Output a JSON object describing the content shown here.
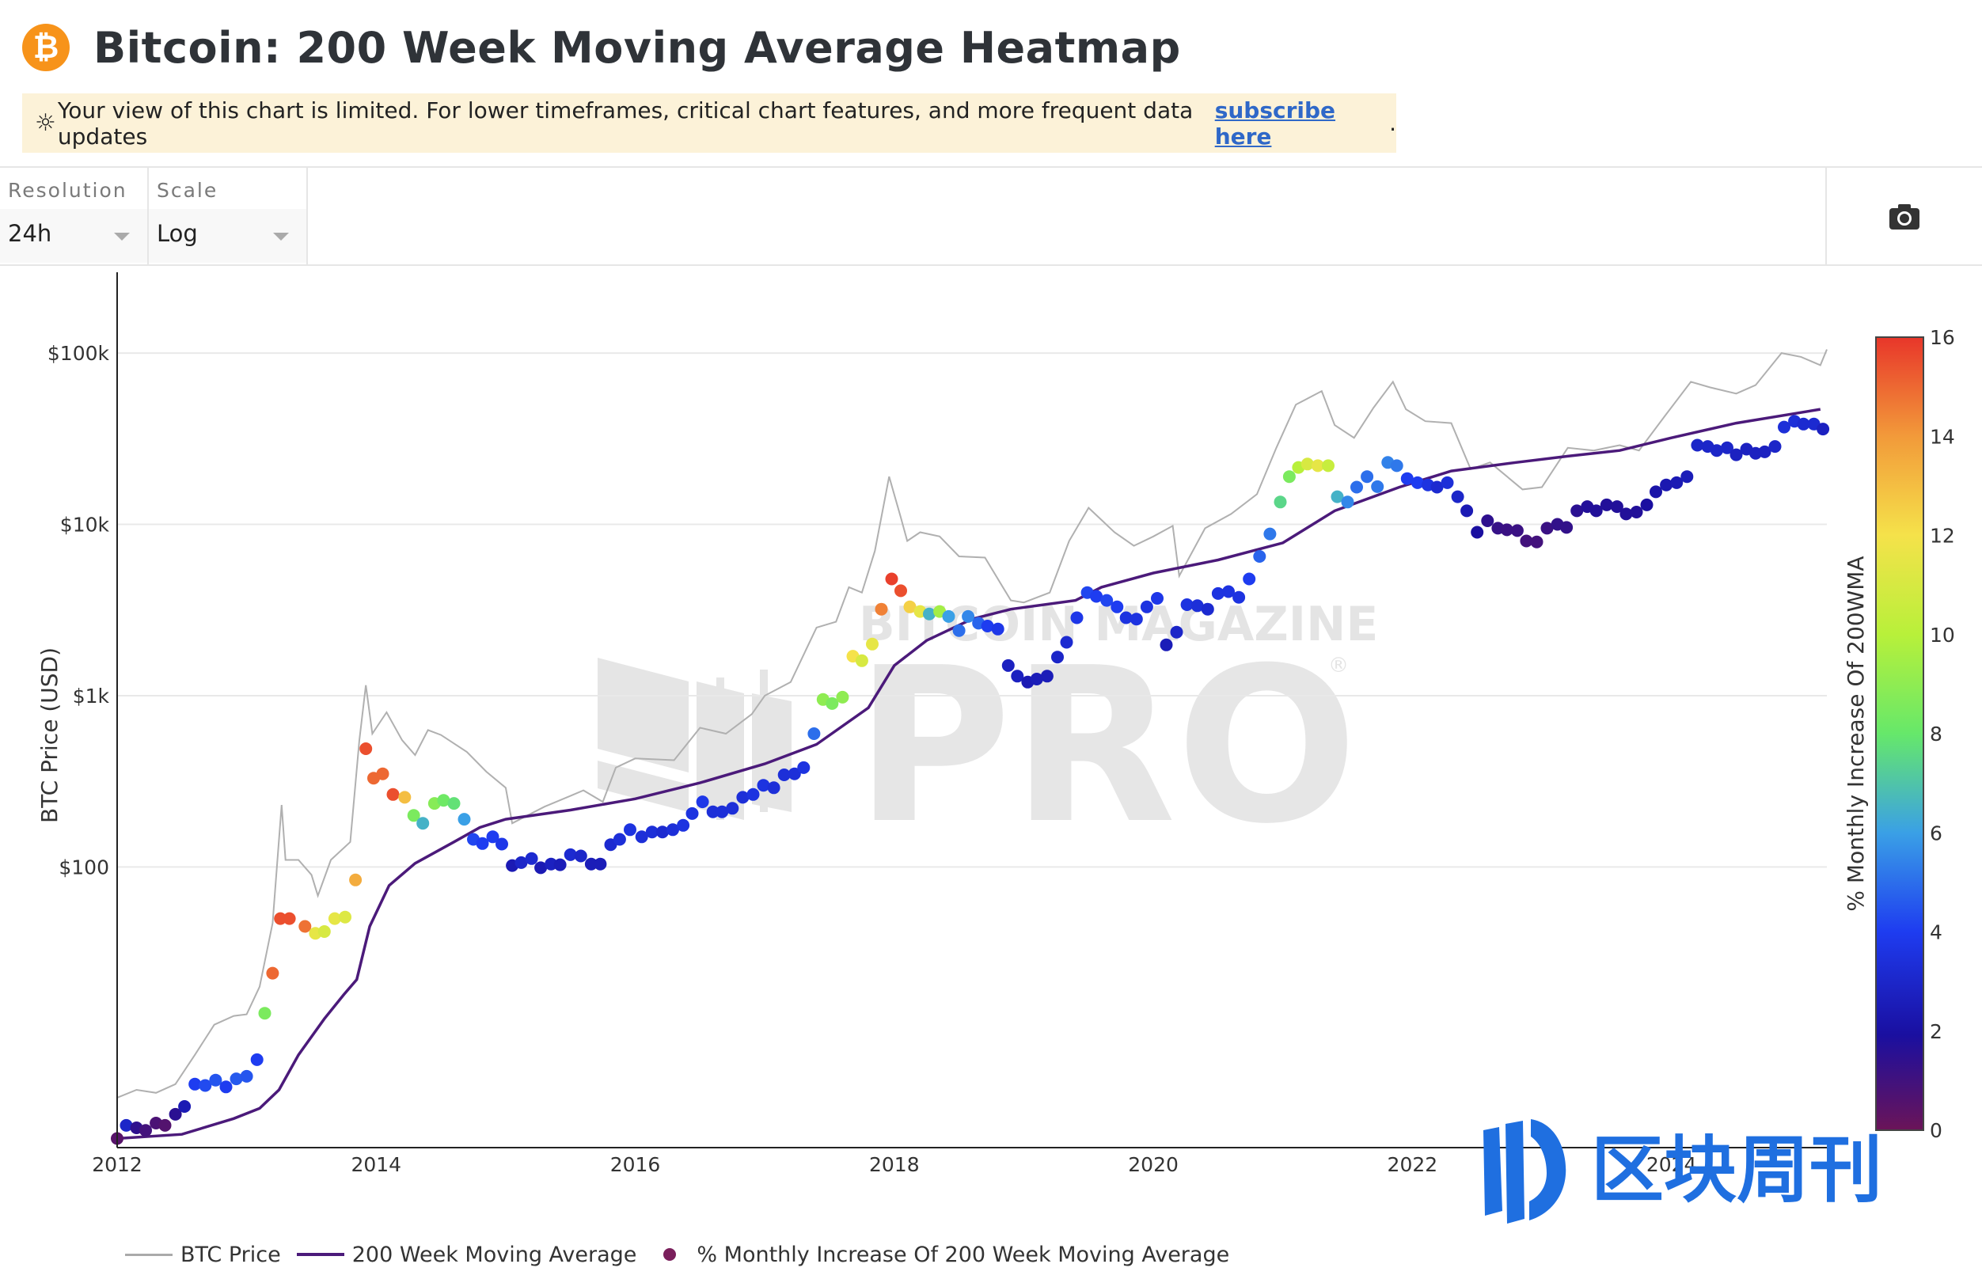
{
  "header": {
    "title": "Bitcoin: 200 Week Moving Average Heatmap",
    "logo_glyph": "₿"
  },
  "notice": {
    "icon": "sun-icon",
    "icon_glyph": "☼",
    "text": "Your view of this chart is limited. For lower timeframes, critical chart features, and more frequent data updates",
    "link": "subscribe here",
    "tail": "."
  },
  "controls": {
    "resolution": {
      "label": "Resolution",
      "value": "24h"
    },
    "scale": {
      "label": "Scale",
      "value": "Log"
    }
  },
  "legend": [
    {
      "name": "BTC Price",
      "color": "#aaaaaa"
    },
    {
      "name": "200 Week Moving Average",
      "color": "#4b1a7a"
    },
    {
      "name": "% Monthly Increase Of 200 Week Moving Average",
      "color": "#7a1f5c"
    }
  ],
  "watermark": {
    "top": "BITCOIN MAGAZINE",
    "main": "PRO",
    "mark": "®"
  },
  "corner_logo": {
    "text": "区块周刊"
  },
  "chart_data": {
    "type": "scatter",
    "ylabel": "BTC Price (USD)",
    "colorbar_label": "% Monthly Increase Of 200WMA",
    "colorbar_range": [
      0,
      16
    ],
    "colorbar_ticks": [
      "0",
      "2",
      "4",
      "6",
      "8",
      "10",
      "12",
      "14",
      "16"
    ],
    "x_ticks": [
      "2012",
      "2014",
      "2016",
      "2018",
      "2020",
      "2022",
      "2024"
    ],
    "x_range": [
      2012.0,
      2025.2
    ],
    "y_scale": "log",
    "y_range": [
      2.3,
      150000
    ],
    "y_ticks": [
      {
        "label": "$100",
        "value": 100
      },
      {
        "label": "$1k",
        "value": 1000
      },
      {
        "label": "$10k",
        "value": 10000
      },
      {
        "label": "$100k",
        "value": 100000
      }
    ],
    "grid": true,
    "legend_position": "bottom",
    "ma200": [
      [
        2012.0,
        2.6
      ],
      [
        2012.5,
        2.75
      ],
      [
        2012.9,
        3.4
      ],
      [
        2013.1,
        3.9
      ],
      [
        2013.25,
        5.0
      ],
      [
        2013.4,
        8.0
      ],
      [
        2013.6,
        13.0
      ],
      [
        2013.75,
        18.0
      ],
      [
        2013.85,
        22.0
      ],
      [
        2013.95,
        45.0
      ],
      [
        2014.1,
        78.0
      ],
      [
        2014.3,
        105.0
      ],
      [
        2014.6,
        140.0
      ],
      [
        2014.8,
        170.0
      ],
      [
        2015.0,
        190.0
      ],
      [
        2015.5,
        215.0
      ],
      [
        2016.0,
        250.0
      ],
      [
        2016.5,
        310.0
      ],
      [
        2017.0,
        400.0
      ],
      [
        2017.4,
        520.0
      ],
      [
        2017.8,
        850.0
      ],
      [
        2018.0,
        1500.0
      ],
      [
        2018.25,
        2100.0
      ],
      [
        2018.6,
        2800.0
      ],
      [
        2018.9,
        3200.0
      ],
      [
        2019.4,
        3600.0
      ],
      [
        2019.6,
        4300.0
      ],
      [
        2020.0,
        5200.0
      ],
      [
        2020.5,
        6200.0
      ],
      [
        2021.0,
        7800.0
      ],
      [
        2021.4,
        12000.0
      ],
      [
        2021.9,
        16500.0
      ],
      [
        2022.3,
        20500.0
      ],
      [
        2022.8,
        23000.0
      ],
      [
        2023.2,
        25000.0
      ],
      [
        2023.6,
        27000.0
      ],
      [
        2024.0,
        32000.0
      ],
      [
        2024.5,
        39000.0
      ],
      [
        2025.0,
        45000.0
      ],
      [
        2025.15,
        47000.0
      ]
    ],
    "price": [
      [
        2012.0,
        4.5
      ],
      [
        2012.15,
        5.0
      ],
      [
        2012.3,
        4.8
      ],
      [
        2012.45,
        5.4
      ],
      [
        2012.6,
        8.0
      ],
      [
        2012.75,
        12.0
      ],
      [
        2012.9,
        13.5
      ],
      [
        2013.0,
        13.8
      ],
      [
        2013.1,
        20.0
      ],
      [
        2013.2,
        47.0
      ],
      [
        2013.27,
        230.0
      ],
      [
        2013.3,
        110.0
      ],
      [
        2013.4,
        110.0
      ],
      [
        2013.5,
        90.0
      ],
      [
        2013.55,
        68.0
      ],
      [
        2013.65,
        110.0
      ],
      [
        2013.8,
        140.0
      ],
      [
        2013.87,
        550.0
      ],
      [
        2013.92,
        1150.0
      ],
      [
        2013.97,
        600.0
      ],
      [
        2014.08,
        800.0
      ],
      [
        2014.2,
        550.0
      ],
      [
        2014.3,
        450.0
      ],
      [
        2014.4,
        630.0
      ],
      [
        2014.5,
        590.0
      ],
      [
        2014.7,
        470.0
      ],
      [
        2014.85,
        360.0
      ],
      [
        2015.0,
        290.0
      ],
      [
        2015.05,
        180.0
      ],
      [
        2015.3,
        225.0
      ],
      [
        2015.5,
        260.0
      ],
      [
        2015.6,
        280.0
      ],
      [
        2015.75,
        240.0
      ],
      [
        2015.85,
        380.0
      ],
      [
        2016.0,
        430.0
      ],
      [
        2016.3,
        420.0
      ],
      [
        2016.5,
        650.0
      ],
      [
        2016.7,
        600.0
      ],
      [
        2016.9,
        780.0
      ],
      [
        2017.0,
        1000.0
      ],
      [
        2017.2,
        1200.0
      ],
      [
        2017.4,
        2500.0
      ],
      [
        2017.55,
        2700.0
      ],
      [
        2017.65,
        4300.0
      ],
      [
        2017.75,
        4000.0
      ],
      [
        2017.85,
        7000.0
      ],
      [
        2017.96,
        19000.0
      ],
      [
        2018.05,
        11000.0
      ],
      [
        2018.1,
        8000.0
      ],
      [
        2018.2,
        9000.0
      ],
      [
        2018.35,
        8500.0
      ],
      [
        2018.5,
        6500.0
      ],
      [
        2018.7,
        6400.0
      ],
      [
        2018.9,
        3600.0
      ],
      [
        2019.0,
        3500.0
      ],
      [
        2019.2,
        4000.0
      ],
      [
        2019.35,
        8000.0
      ],
      [
        2019.5,
        12500.0
      ],
      [
        2019.7,
        9000.0
      ],
      [
        2019.85,
        7500.0
      ],
      [
        2020.0,
        8500.0
      ],
      [
        2020.15,
        9800.0
      ],
      [
        2020.2,
        5000.0
      ],
      [
        2020.4,
        9500.0
      ],
      [
        2020.6,
        11500.0
      ],
      [
        2020.8,
        15000.0
      ],
      [
        2020.95,
        28000.0
      ],
      [
        2021.1,
        50000.0
      ],
      [
        2021.3,
        60000.0
      ],
      [
        2021.4,
        38000.0
      ],
      [
        2021.55,
        32000.0
      ],
      [
        2021.7,
        48000.0
      ],
      [
        2021.85,
        68000.0
      ],
      [
        2021.95,
        47000.0
      ],
      [
        2022.1,
        40000.0
      ],
      [
        2022.3,
        39000.0
      ],
      [
        2022.45,
        21000.0
      ],
      [
        2022.6,
        23000.0
      ],
      [
        2022.85,
        16000.0
      ],
      [
        2023.0,
        16500.0
      ],
      [
        2023.2,
        28000.0
      ],
      [
        2023.4,
        27000.0
      ],
      [
        2023.6,
        29000.0
      ],
      [
        2023.75,
        27000.0
      ],
      [
        2023.95,
        43000.0
      ],
      [
        2024.15,
        68000.0
      ],
      [
        2024.3,
        63000.0
      ],
      [
        2024.5,
        58000.0
      ],
      [
        2024.65,
        65000.0
      ],
      [
        2024.85,
        100000.0
      ],
      [
        2025.0,
        95000.0
      ],
      [
        2025.15,
        85000.0
      ],
      [
        2025.2,
        105000.0
      ]
    ],
    "points": [
      [
        2012.0,
        2.6,
        0.5
      ],
      [
        2012.07,
        3.1,
        3.0
      ],
      [
        2012.15,
        3.0,
        1.5
      ],
      [
        2012.22,
        2.9,
        1.0
      ],
      [
        2012.3,
        3.2,
        0.8
      ],
      [
        2012.37,
        3.1,
        0.6
      ],
      [
        2012.45,
        3.6,
        1.6
      ],
      [
        2012.52,
        4.0,
        2.5
      ],
      [
        2012.6,
        5.4,
        4.0
      ],
      [
        2012.68,
        5.3,
        4.3
      ],
      [
        2012.76,
        5.7,
        4.5
      ],
      [
        2012.84,
        5.2,
        4.0
      ],
      [
        2012.92,
        5.8,
        4.6
      ],
      [
        2013.0,
        6.0,
        4.5
      ],
      [
        2013.08,
        7.5,
        4.0
      ],
      [
        2013.14,
        14.0,
        8.5
      ],
      [
        2013.2,
        24.0,
        15.0
      ],
      [
        2013.26,
        50.0,
        15.5
      ],
      [
        2013.33,
        50.0,
        15.5
      ],
      [
        2013.45,
        45.0,
        14.8
      ],
      [
        2013.53,
        41.0,
        11.5
      ],
      [
        2013.6,
        42.0,
        11.0
      ],
      [
        2013.68,
        50.0,
        11.5
      ],
      [
        2013.76,
        51.0,
        11.2
      ],
      [
        2013.84,
        84.0,
        13.5
      ],
      [
        2013.92,
        490.0,
        15.5
      ],
      [
        2013.98,
        330.0,
        15.0
      ],
      [
        2014.05,
        350.0,
        15.0
      ],
      [
        2014.13,
        265.0,
        15.5
      ],
      [
        2014.22,
        255.0,
        13.0
      ],
      [
        2014.29,
        200.0,
        8.5
      ],
      [
        2014.36,
        180.0,
        6.5
      ],
      [
        2014.45,
        235.0,
        8.8
      ],
      [
        2014.52,
        245.0,
        8.2
      ],
      [
        2014.6,
        235.0,
        7.8
      ],
      [
        2014.68,
        190.0,
        6.0
      ],
      [
        2014.75,
        145.0,
        4.2
      ],
      [
        2014.82,
        137.0,
        4.0
      ],
      [
        2014.9,
        150.0,
        4.0
      ],
      [
        2014.97,
        136.0,
        3.8
      ],
      [
        2015.05,
        102.0,
        2.5
      ],
      [
        2015.12,
        106.0,
        3.0
      ],
      [
        2015.2,
        112.0,
        3.2
      ],
      [
        2015.27,
        99.0,
        2.5
      ],
      [
        2015.35,
        104.0,
        2.8
      ],
      [
        2015.42,
        103.0,
        2.6
      ],
      [
        2015.5,
        118.0,
        3.2
      ],
      [
        2015.58,
        116.0,
        3.0
      ],
      [
        2015.66,
        104.0,
        2.6
      ],
      [
        2015.73,
        104.0,
        2.6
      ],
      [
        2015.81,
        135.0,
        3.2
      ],
      [
        2015.88,
        145.0,
        3.4
      ],
      [
        2015.96,
        165.0,
        3.6
      ],
      [
        2016.05,
        150.0,
        3.4
      ],
      [
        2016.13,
        160.0,
        3.4
      ],
      [
        2016.21,
        160.0,
        3.2
      ],
      [
        2016.29,
        165.0,
        3.4
      ],
      [
        2016.37,
        175.0,
        3.6
      ],
      [
        2016.44,
        205.0,
        3.6
      ],
      [
        2016.52,
        240.0,
        3.8
      ],
      [
        2016.6,
        210.0,
        3.4
      ],
      [
        2016.67,
        210.0,
        3.4
      ],
      [
        2016.75,
        220.0,
        3.4
      ],
      [
        2016.83,
        255.0,
        3.4
      ],
      [
        2016.91,
        265.0,
        3.6
      ],
      [
        2016.99,
        300.0,
        3.6
      ],
      [
        2017.07,
        290.0,
        3.4
      ],
      [
        2017.15,
        345.0,
        3.4
      ],
      [
        2017.23,
        350.0,
        3.4
      ],
      [
        2017.3,
        380.0,
        3.6
      ],
      [
        2017.38,
        600.0,
        5.0
      ],
      [
        2017.45,
        950.0,
        9.0
      ],
      [
        2017.52,
        900.0,
        8.5
      ],
      [
        2017.6,
        980.0,
        9.0
      ],
      [
        2017.68,
        1700.0,
        12.0
      ],
      [
        2017.75,
        1600.0,
        11.0
      ],
      [
        2017.83,
        2000.0,
        11.5
      ],
      [
        2017.9,
        3200.0,
        14.5
      ],
      [
        2017.98,
        4800.0,
        15.8
      ],
      [
        2018.05,
        4100.0,
        15.5
      ],
      [
        2018.12,
        3300.0,
        12.5
      ],
      [
        2018.2,
        3100.0,
        11.5
      ],
      [
        2018.27,
        3000.0,
        6.5
      ],
      [
        2018.35,
        3100.0,
        9.5
      ],
      [
        2018.42,
        2900.0,
        6.0
      ],
      [
        2018.5,
        2400.0,
        5.0
      ],
      [
        2018.57,
        2900.0,
        5.5
      ],
      [
        2018.65,
        2650.0,
        4.8
      ],
      [
        2018.72,
        2550.0,
        4.0
      ],
      [
        2018.8,
        2450.0,
        3.8
      ],
      [
        2018.88,
        1500.0,
        2.8
      ],
      [
        2018.95,
        1300.0,
        2.8
      ],
      [
        2019.03,
        1200.0,
        2.5
      ],
      [
        2019.1,
        1250.0,
        2.6
      ],
      [
        2019.18,
        1300.0,
        2.6
      ],
      [
        2019.26,
        1680.0,
        3.0
      ],
      [
        2019.33,
        2050.0,
        3.2
      ],
      [
        2019.41,
        2850.0,
        3.8
      ],
      [
        2019.49,
        4000.0,
        4.2
      ],
      [
        2019.56,
        3800.0,
        4.0
      ],
      [
        2019.64,
        3600.0,
        4.2
      ],
      [
        2019.72,
        3300.0,
        4.0
      ],
      [
        2019.79,
        2850.0,
        3.6
      ],
      [
        2019.87,
        2800.0,
        3.6
      ],
      [
        2019.95,
        3300.0,
        3.6
      ],
      [
        2020.03,
        3700.0,
        3.8
      ],
      [
        2020.1,
        1980.0,
        2.6
      ],
      [
        2020.18,
        2350.0,
        3.0
      ],
      [
        2020.26,
        3400.0,
        3.6
      ],
      [
        2020.34,
        3350.0,
        3.4
      ],
      [
        2020.42,
        3200.0,
        3.2
      ],
      [
        2020.5,
        3950.0,
        3.6
      ],
      [
        2020.58,
        4050.0,
        3.6
      ],
      [
        2020.66,
        3750.0,
        3.6
      ],
      [
        2020.74,
        4800.0,
        4.0
      ],
      [
        2020.82,
        6500.0,
        4.8
      ],
      [
        2020.9,
        8800.0,
        5.2
      ],
      [
        2020.98,
        13500.0,
        7.5
      ],
      [
        2021.05,
        19000.0,
        8.5
      ],
      [
        2021.12,
        21500.0,
        10.0
      ],
      [
        2021.19,
        22500.0,
        11.0
      ],
      [
        2021.27,
        22000.0,
        11.5
      ],
      [
        2021.35,
        22000.0,
        10.5
      ],
      [
        2021.42,
        14500.0,
        6.5
      ],
      [
        2021.5,
        13500.0,
        5.5
      ],
      [
        2021.57,
        16500.0,
        5.0
      ],
      [
        2021.65,
        19000.0,
        5.0
      ],
      [
        2021.73,
        16600.0,
        5.2
      ],
      [
        2021.81,
        23000.0,
        5.4
      ],
      [
        2021.88,
        22000.0,
        5.2
      ],
      [
        2021.96,
        18500.0,
        4.0
      ],
      [
        2022.04,
        17500.0,
        4.0
      ],
      [
        2022.12,
        17000.0,
        3.6
      ],
      [
        2022.19,
        16500.0,
        3.2
      ],
      [
        2022.27,
        17500.0,
        3.4
      ],
      [
        2022.35,
        14500.0,
        3.0
      ],
      [
        2022.42,
        12000.0,
        2.5
      ],
      [
        2022.5,
        9000.0,
        2.0
      ],
      [
        2022.58,
        10500.0,
        1.5
      ],
      [
        2022.66,
        9500.0,
        1.3
      ],
      [
        2022.73,
        9300.0,
        1.2
      ],
      [
        2022.81,
        9200.0,
        1.2
      ],
      [
        2022.88,
        8000.0,
        1.0
      ],
      [
        2022.96,
        7900.0,
        1.0
      ],
      [
        2023.04,
        9500.0,
        1.2
      ],
      [
        2023.12,
        10000.0,
        1.4
      ],
      [
        2023.19,
        9600.0,
        1.4
      ],
      [
        2023.27,
        12000.0,
        1.6
      ],
      [
        2023.35,
        12700.0,
        1.8
      ],
      [
        2023.42,
        12000.0,
        1.8
      ],
      [
        2023.5,
        13000.0,
        1.8
      ],
      [
        2023.58,
        12700.0,
        1.8
      ],
      [
        2023.65,
        11500.0,
        1.8
      ],
      [
        2023.73,
        11800.0,
        1.8
      ],
      [
        2023.81,
        13000.0,
        2.0
      ],
      [
        2023.88,
        15500.0,
        2.2
      ],
      [
        2023.96,
        17000.0,
        2.4
      ],
      [
        2024.04,
        17500.0,
        2.5
      ],
      [
        2024.12,
        19000.0,
        2.6
      ],
      [
        2024.2,
        29000.0,
        3.0
      ],
      [
        2024.28,
        28500.0,
        3.0
      ],
      [
        2024.35,
        27000.0,
        3.0
      ],
      [
        2024.43,
        28000.0,
        3.0
      ],
      [
        2024.5,
        25500.0,
        2.8
      ],
      [
        2024.58,
        27500.0,
        2.8
      ],
      [
        2024.65,
        26000.0,
        2.8
      ],
      [
        2024.72,
        26500.0,
        2.8
      ],
      [
        2024.8,
        28500.0,
        3.0
      ],
      [
        2024.87,
        37000.0,
        3.4
      ],
      [
        2024.95,
        40000.0,
        3.4
      ],
      [
        2025.02,
        38500.0,
        3.2
      ],
      [
        2025.1,
        38500.0,
        3.2
      ],
      [
        2025.17,
        36000.0,
        2.8
      ],
      [
        2025.24,
        35000.0,
        2.8
      ],
      [
        2025.32,
        38500.0,
        3.2
      ]
    ]
  }
}
